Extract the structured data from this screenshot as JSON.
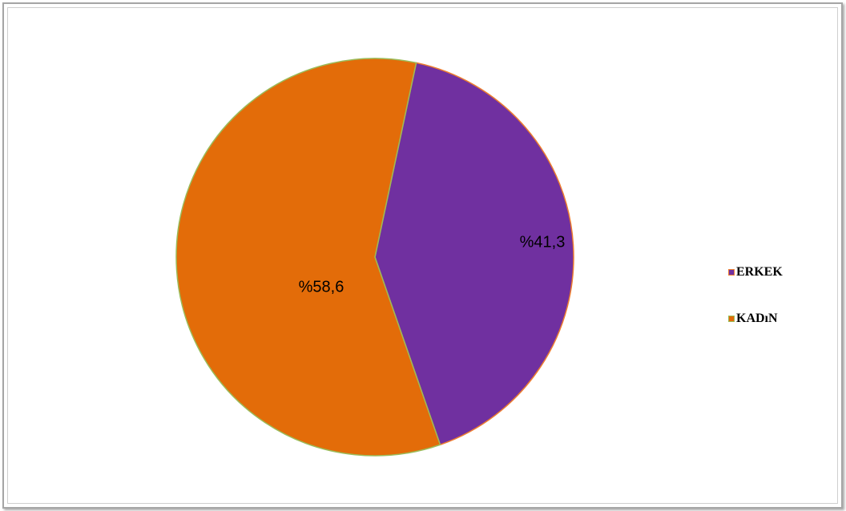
{
  "chart_data": {
    "type": "pie",
    "title": "",
    "slices": [
      {
        "name": "ERKEK",
        "value": 41.3,
        "label": "%41,3",
        "color": "#7030a0",
        "stroke": "#ed7d31"
      },
      {
        "name": "KADıN",
        "value": 58.6,
        "label": "%58,6",
        "color": "#e36c09",
        "stroke": "#9bbb59"
      }
    ],
    "start_angle_deg": 12,
    "legend_position": "right"
  }
}
